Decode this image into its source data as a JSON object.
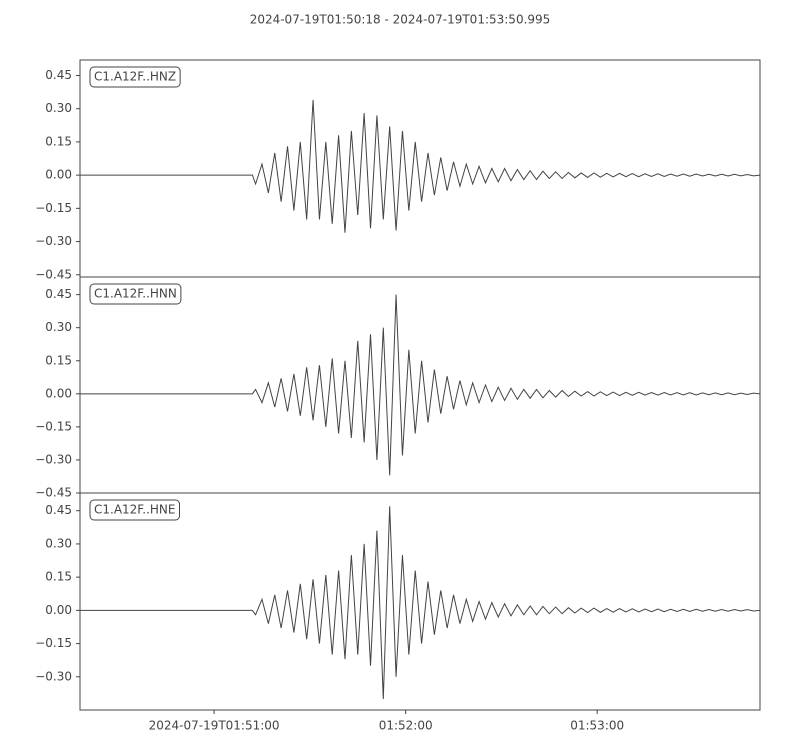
{
  "chart_data": [
    {
      "type": "line",
      "title": "2024-07-19T01:50:18  -  2024-07-19T01:53:50.995",
      "label": "C1.A12F..HNZ",
      "xlim": [
        0,
        212.995
      ],
      "ylim": [
        -0.46,
        0.52
      ],
      "yticks": [
        {
          "value": -0.45,
          "label": "−0.45"
        },
        {
          "value": -0.3,
          "label": "−0.30"
        },
        {
          "value": -0.15,
          "label": "−0.15"
        },
        {
          "value": 0,
          "label": "0.00"
        },
        {
          "value": 0.15,
          "label": "0.15"
        },
        {
          "value": 0.3,
          "label": "0.30"
        },
        {
          "value": 0.45,
          "label": "0.45"
        }
      ],
      "x": [
        0,
        54,
        55,
        57,
        59,
        61,
        63,
        65,
        67,
        69,
        71,
        73,
        75,
        77,
        79,
        81,
        83,
        85,
        87,
        89,
        91,
        93,
        95,
        97,
        99,
        101,
        103,
        105,
        107,
        109,
        111,
        113,
        115,
        117,
        119,
        121,
        123,
        125,
        127,
        129,
        131,
        133,
        135,
        137,
        139,
        141,
        143,
        145,
        147,
        149,
        151,
        153,
        155,
        157,
        159,
        161,
        163,
        165,
        167,
        169,
        171,
        173,
        175,
        177,
        179,
        181,
        183,
        185,
        187,
        189,
        191,
        193,
        195,
        197,
        199,
        201,
        203,
        205,
        207,
        209,
        211,
        212.995
      ],
      "series": [
        {
          "color": "#444444",
          "values": [
            0,
            0,
            -0.04,
            0.05,
            -0.08,
            0.1,
            -0.12,
            0.13,
            -0.16,
            0.15,
            -0.2,
            0.34,
            -0.2,
            0.15,
            -0.22,
            0.18,
            -0.26,
            0.2,
            -0.18,
            0.28,
            -0.24,
            0.27,
            -0.2,
            0.22,
            -0.25,
            0.2,
            -0.16,
            0.15,
            -0.12,
            0.1,
            -0.09,
            0.08,
            -0.07,
            0.06,
            -0.05,
            0.05,
            -0.04,
            0.04,
            -0.035,
            0.03,
            -0.03,
            0.03,
            -0.025,
            0.025,
            -0.02,
            0.02,
            -0.02,
            0.018,
            -0.015,
            0.015,
            -0.015,
            0.012,
            -0.012,
            0.01,
            -0.01,
            0.01,
            -0.009,
            0.008,
            -0.008,
            0.008,
            -0.007,
            0.007,
            -0.007,
            0.006,
            -0.006,
            0.006,
            -0.006,
            0.005,
            -0.005,
            0.005,
            -0.005,
            0.005,
            -0.004,
            0.004,
            -0.004,
            0.004,
            -0.004,
            0.004,
            -0.003,
            0.003,
            -0.003,
            0
          ]
        }
      ]
    },
    {
      "type": "line",
      "label": "C1.A12F..HNN",
      "xlim": [
        0,
        212.995
      ],
      "ylim": [
        -0.45,
        0.53
      ],
      "yticks": [
        {
          "value": -0.45,
          "label": "−0.45"
        },
        {
          "value": -0.3,
          "label": "−0.30"
        },
        {
          "value": -0.15,
          "label": "−0.15"
        },
        {
          "value": 0,
          "label": "0.00"
        },
        {
          "value": 0.15,
          "label": "0.15"
        },
        {
          "value": 0.3,
          "label": "0.30"
        },
        {
          "value": 0.45,
          "label": "0.45"
        }
      ],
      "x": [
        0,
        54,
        55,
        57,
        59,
        61,
        63,
        65,
        67,
        69,
        71,
        73,
        75,
        77,
        79,
        81,
        83,
        85,
        87,
        89,
        91,
        93,
        95,
        97,
        99,
        101,
        103,
        105,
        107,
        109,
        111,
        113,
        115,
        117,
        119,
        121,
        123,
        125,
        127,
        129,
        131,
        133,
        135,
        137,
        139,
        141,
        143,
        145,
        147,
        149,
        151,
        153,
        155,
        157,
        159,
        161,
        163,
        165,
        167,
        169,
        171,
        173,
        175,
        177,
        179,
        181,
        183,
        185,
        187,
        189,
        191,
        193,
        195,
        197,
        199,
        201,
        203,
        205,
        207,
        209,
        211,
        212.995
      ],
      "series": [
        {
          "color": "#444444",
          "values": [
            0,
            0,
            0.02,
            -0.04,
            0.05,
            -0.06,
            0.07,
            -0.08,
            0.09,
            -0.1,
            0.12,
            -0.12,
            0.13,
            -0.15,
            0.16,
            -0.18,
            0.15,
            -0.2,
            0.24,
            -0.22,
            0.27,
            -0.3,
            0.3,
            -0.37,
            0.45,
            -0.28,
            0.2,
            -0.18,
            0.15,
            -0.13,
            0.11,
            -0.09,
            0.08,
            -0.07,
            0.06,
            -0.05,
            0.05,
            -0.04,
            0.04,
            -0.035,
            0.03,
            -0.03,
            0.025,
            -0.025,
            0.02,
            -0.02,
            0.02,
            -0.018,
            0.015,
            -0.015,
            0.015,
            -0.012,
            0.012,
            -0.01,
            0.01,
            -0.01,
            0.009,
            -0.008,
            0.008,
            -0.008,
            0.007,
            -0.007,
            0.007,
            -0.006,
            0.006,
            -0.006,
            0.006,
            -0.005,
            0.005,
            -0.005,
            0.005,
            -0.005,
            0.004,
            -0.004,
            0.004,
            -0.004,
            0.004,
            -0.004,
            0.003,
            -0.003,
            0.003,
            0
          ]
        }
      ]
    },
    {
      "type": "line",
      "label": "C1.A12F..HNE",
      "xlim": [
        0,
        212.995
      ],
      "ylim": [
        -0.45,
        0.53
      ],
      "yticks": [
        {
          "value": -0.3,
          "label": "−0.30"
        },
        {
          "value": -0.15,
          "label": "−0.15"
        },
        {
          "value": 0,
          "label": "0.00"
        },
        {
          "value": 0.15,
          "label": "0.15"
        },
        {
          "value": 0.3,
          "label": "0.30"
        },
        {
          "value": 0.45,
          "label": "0.45"
        }
      ],
      "xticks": [
        {
          "value": 42,
          "label": "2024-07-19T01:51:00"
        },
        {
          "value": 102,
          "label": "01:52:00"
        },
        {
          "value": 162,
          "label": "01:53:00"
        }
      ],
      "x": [
        0,
        54,
        55,
        57,
        59,
        61,
        63,
        65,
        67,
        69,
        71,
        73,
        75,
        77,
        79,
        81,
        83,
        85,
        87,
        89,
        91,
        93,
        95,
        97,
        99,
        101,
        103,
        105,
        107,
        109,
        111,
        113,
        115,
        117,
        119,
        121,
        123,
        125,
        127,
        129,
        131,
        133,
        135,
        137,
        139,
        141,
        143,
        145,
        147,
        149,
        151,
        153,
        155,
        157,
        159,
        161,
        163,
        165,
        167,
        169,
        171,
        173,
        175,
        177,
        179,
        181,
        183,
        185,
        187,
        189,
        191,
        193,
        195,
        197,
        199,
        201,
        203,
        205,
        207,
        209,
        211,
        212.995
      ],
      "series": [
        {
          "color": "#444444",
          "values": [
            0,
            0,
            -0.02,
            0.05,
            -0.06,
            0.07,
            -0.08,
            0.09,
            -0.1,
            0.12,
            -0.13,
            0.14,
            -0.15,
            0.16,
            -0.2,
            0.18,
            -0.22,
            0.25,
            -0.2,
            0.3,
            -0.25,
            0.36,
            -0.4,
            0.47,
            -0.3,
            0.25,
            -0.2,
            0.18,
            -0.15,
            0.13,
            -0.11,
            0.09,
            -0.08,
            0.07,
            -0.06,
            0.05,
            -0.05,
            0.04,
            -0.04,
            0.035,
            -0.03,
            0.03,
            -0.025,
            0.025,
            -0.02,
            0.02,
            -0.02,
            0.018,
            -0.015,
            0.015,
            -0.015,
            0.012,
            -0.012,
            0.01,
            -0.01,
            0.01,
            -0.009,
            0.008,
            -0.008,
            0.008,
            -0.007,
            0.007,
            -0.007,
            0.006,
            -0.006,
            0.006,
            -0.006,
            0.005,
            -0.005,
            0.005,
            -0.005,
            0.005,
            -0.004,
            0.004,
            -0.004,
            0.004,
            -0.004,
            0.004,
            -0.003,
            0.003,
            -0.003,
            0
          ]
        }
      ]
    }
  ]
}
